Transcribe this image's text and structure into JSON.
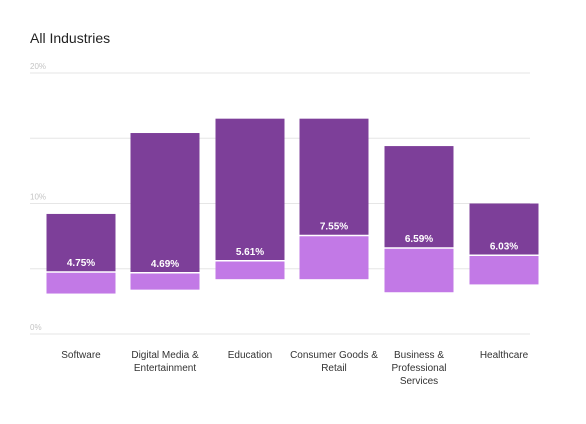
{
  "chart_data": {
    "type": "bar",
    "subtype": "floating-range-stacked",
    "title": "All Industries",
    "xlabel": "",
    "ylabel": "",
    "ylim": [
      0,
      20
    ],
    "yticks": [
      "0%",
      "10%",
      "20%"
    ],
    "grid": true,
    "categories": [
      "Software",
      "Digital Media & Entertainment",
      "Education",
      "Consumer Goods & Retail",
      "Business & Professional Services",
      "Healthcare"
    ],
    "category_lines": [
      [
        "Software"
      ],
      [
        "Digital Media &",
        "Entertainment"
      ],
      [
        "Education"
      ],
      [
        "Consumer Goods &",
        "Retail"
      ],
      [
        "Business &",
        "Professional",
        "Services"
      ],
      [
        "Healthcare"
      ]
    ],
    "series": [
      {
        "values": [
          3.1,
          3.4,
          4.2,
          4.2,
          3.2,
          3.8
        ],
        "color": "#c279e6"
      },
      {
        "values": [
          4.75,
          4.69,
          5.61,
          7.55,
          6.59,
          6.03
        ],
        "color": "#c279e6"
      },
      {
        "values": [
          9.2,
          15.4,
          16.5,
          16.5,
          14.4,
          10.0
        ],
        "color": "#7d3f99"
      }
    ],
    "data_labels": [
      "4.75%",
      "4.69%",
      "5.61%",
      "7.55%",
      "6.59%",
      "6.03%"
    ]
  },
  "colors": {
    "upper": "#7d3f99",
    "lower": "#c279e6",
    "grid": "#e6e6e6"
  }
}
